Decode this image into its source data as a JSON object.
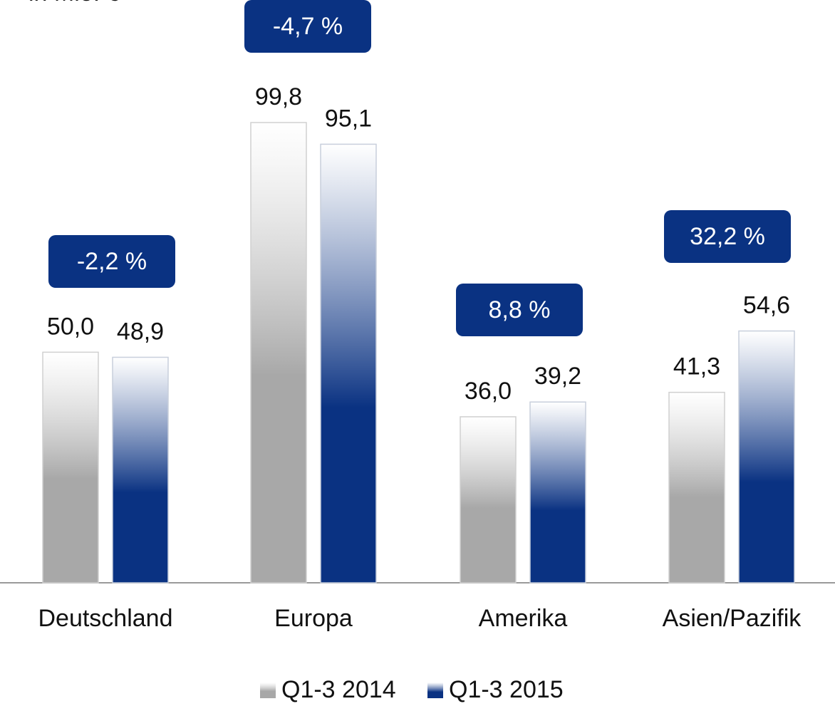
{
  "chart_data": {
    "type": "bar",
    "subtitle": "in Mio. €",
    "categories": [
      "Deutschland",
      "Europa",
      "Amerika",
      "Asien/Pazifik"
    ],
    "series": [
      {
        "name": "Q1-3 2014",
        "color": "#a8a8a8",
        "values": [
          50.0,
          99.8,
          36.0,
          41.3
        ],
        "value_labels": [
          "50,0",
          "99,8",
          "36,0",
          "41,3"
        ]
      },
      {
        "name": "Q1-3 2015",
        "color": "#0a3282",
        "values": [
          48.9,
          95.1,
          39.2,
          54.6
        ],
        "value_labels": [
          "48,9",
          "95,1",
          "39,2",
          "54,6"
        ]
      }
    ],
    "annotations": [
      "-2,2 %",
      "-4,7 %",
      "8,8 %",
      "32,2 %"
    ],
    "annotation_color": "#0a3282"
  }
}
